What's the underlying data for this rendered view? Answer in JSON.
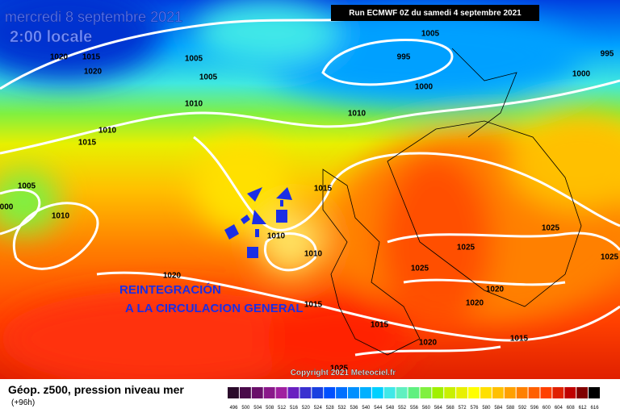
{
  "header": {
    "date": "mercredi 8 septembre 2021",
    "time": "2:00 locale",
    "run": "Run ECMWF 0Z du samedi 4 septembre 2021"
  },
  "isobar_labels": [
    "1005",
    "995",
    "995",
    "1000",
    "1000",
    "1020",
    "1015",
    "1020",
    "1005",
    "1005",
    "1010",
    "1010",
    "1010",
    "1015",
    "1005",
    "000",
    "1010",
    "1015",
    "1010",
    "1010",
    "1020",
    "1025",
    "1025",
    "1025",
    "1025",
    "1020",
    "1020",
    "1015",
    "1015",
    "1020",
    "1015",
    "1025"
  ],
  "annotation": {
    "line1": "REINTEGRACIÓN",
    "line2": "A LA CIRCULACION GENERAL"
  },
  "footer": {
    "title": "Géop. z500, pression niveau mer",
    "lead": "(+96h)",
    "copyright": "Copyright 2021 Meteociel.fr"
  },
  "legend": {
    "labels": [
      496,
      500,
      504,
      508,
      512,
      516,
      520,
      524,
      528,
      532,
      536,
      540,
      544,
      548,
      552,
      556,
      560,
      564,
      568,
      572,
      576,
      580,
      584,
      588,
      592,
      596,
      600,
      604,
      608,
      612,
      616
    ],
    "colors": [
      "#2a0a2a",
      "#4a0a4a",
      "#6a106a",
      "#8a188a",
      "#a020a0",
      "#6a20c0",
      "#3a30d0",
      "#1a40e0",
      "#0050ff",
      "#0070ff",
      "#0090ff",
      "#00b0ff",
      "#00d0ff",
      "#40e8e8",
      "#60f0c0",
      "#60f080",
      "#80f040",
      "#a0f000",
      "#c8f000",
      "#e8f000",
      "#ffff00",
      "#ffe000",
      "#ffc000",
      "#ffa000",
      "#ff8000",
      "#ff6000",
      "#ff4000",
      "#e02000",
      "#c00000",
      "#800000",
      "#000000"
    ]
  }
}
